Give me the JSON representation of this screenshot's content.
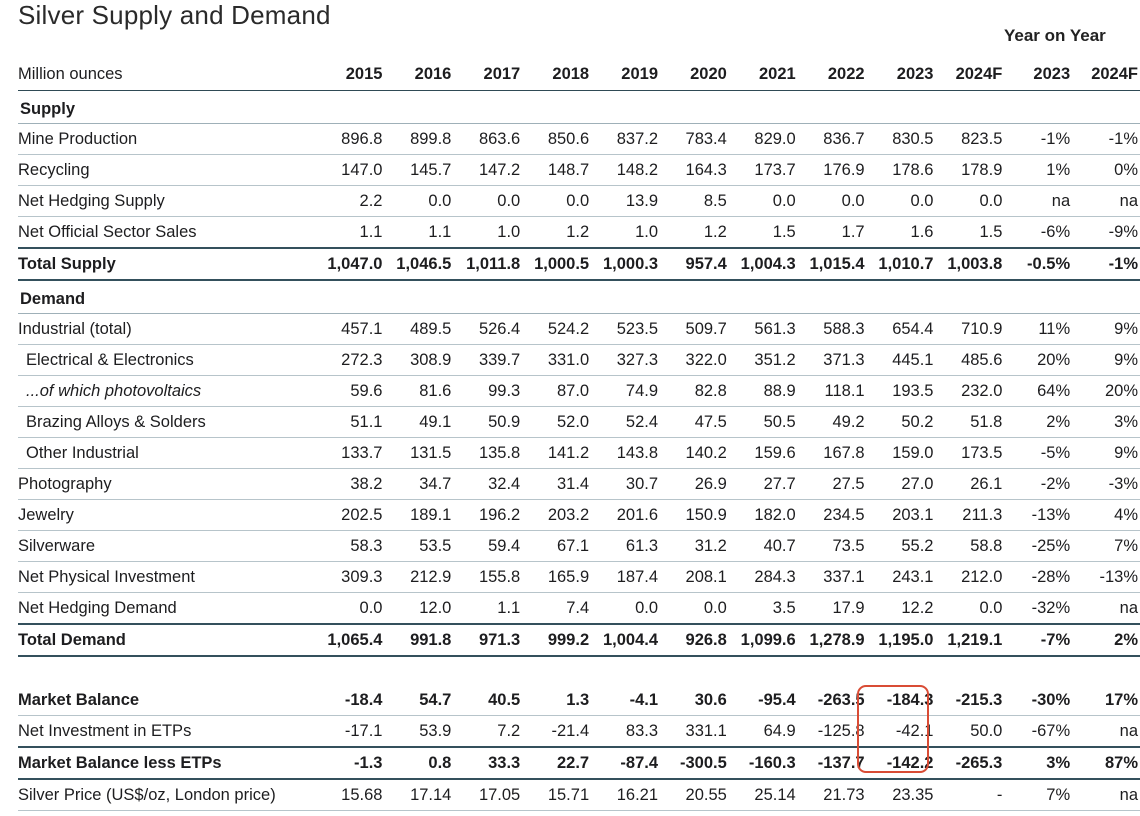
{
  "title": "Silver Supply and Demand",
  "yoy_label": "Year on Year",
  "header": {
    "unit": "Million ounces",
    "years": [
      "2015",
      "2016",
      "2017",
      "2018",
      "2019",
      "2020",
      "2021",
      "2022",
      "2023",
      "2024F"
    ],
    "yoy": [
      "2023",
      "2024F"
    ]
  },
  "supply": {
    "section_label": "Supply",
    "rows": [
      {
        "label": "Mine Production",
        "values": [
          "896.8",
          "899.8",
          "863.6",
          "850.6",
          "837.2",
          "783.4",
          "829.0",
          "836.7",
          "830.5",
          "823.5"
        ],
        "yoy": [
          "-1%",
          "-1%"
        ]
      },
      {
        "label": "Recycling",
        "values": [
          "147.0",
          "145.7",
          "147.2",
          "148.7",
          "148.2",
          "164.3",
          "173.7",
          "176.9",
          "178.6",
          "178.9"
        ],
        "yoy": [
          "1%",
          "0%"
        ]
      },
      {
        "label": "Net Hedging Supply",
        "values": [
          "2.2",
          "0.0",
          "0.0",
          "0.0",
          "13.9",
          "8.5",
          "0.0",
          "0.0",
          "0.0",
          "0.0"
        ],
        "yoy": [
          "na",
          "na"
        ]
      },
      {
        "label": "Net Official Sector Sales",
        "values": [
          "1.1",
          "1.1",
          "1.0",
          "1.2",
          "1.0",
          "1.2",
          "1.5",
          "1.7",
          "1.6",
          "1.5"
        ],
        "yoy": [
          "-6%",
          "-9%"
        ]
      }
    ],
    "total": {
      "label": "Total Supply",
      "values": [
        "1,047.0",
        "1,046.5",
        "1,011.8",
        "1,000.5",
        "1,000.3",
        "957.4",
        "1,004.3",
        "1,015.4",
        "1,010.7",
        "1,003.8"
      ],
      "yoy": [
        "-0.5%",
        "-1%"
      ]
    }
  },
  "demand": {
    "section_label": "Demand",
    "rows": [
      {
        "label": "Industrial (total)",
        "values": [
          "457.1",
          "489.5",
          "526.4",
          "524.2",
          "523.5",
          "509.7",
          "561.3",
          "588.3",
          "654.4",
          "710.9"
        ],
        "yoy": [
          "11%",
          "9%"
        ]
      },
      {
        "label": "Electrical & Electronics",
        "values": [
          "272.3",
          "308.9",
          "339.7",
          "331.0",
          "327.3",
          "322.0",
          "351.2",
          "371.3",
          "445.1",
          "485.6"
        ],
        "yoy": [
          "20%",
          "9%"
        ]
      },
      {
        "label": "...of which photovoltaics",
        "values": [
          "59.6",
          "81.6",
          "99.3",
          "87.0",
          "74.9",
          "82.8",
          "88.9",
          "118.1",
          "193.5",
          "232.0"
        ],
        "yoy": [
          "64%",
          "20%"
        ]
      },
      {
        "label": "Brazing Alloys & Solders",
        "values": [
          "51.1",
          "49.1",
          "50.9",
          "52.0",
          "52.4",
          "47.5",
          "50.5",
          "49.2",
          "50.2",
          "51.8"
        ],
        "yoy": [
          "2%",
          "3%"
        ]
      },
      {
        "label": "Other Industrial",
        "values": [
          "133.7",
          "131.5",
          "135.8",
          "141.2",
          "143.8",
          "140.2",
          "159.6",
          "167.8",
          "159.0",
          "173.5"
        ],
        "yoy": [
          "-5%",
          "9%"
        ]
      },
      {
        "label": "Photography",
        "values": [
          "38.2",
          "34.7",
          "32.4",
          "31.4",
          "30.7",
          "26.9",
          "27.7",
          "27.5",
          "27.0",
          "26.1"
        ],
        "yoy": [
          "-2%",
          "-3%"
        ]
      },
      {
        "label": "Jewelry",
        "values": [
          "202.5",
          "189.1",
          "196.2",
          "203.2",
          "201.6",
          "150.9",
          "182.0",
          "234.5",
          "203.1",
          "211.3"
        ],
        "yoy": [
          "-13%",
          "4%"
        ]
      },
      {
        "label": "Silverware",
        "values": [
          "58.3",
          "53.5",
          "59.4",
          "67.1",
          "61.3",
          "31.2",
          "40.7",
          "73.5",
          "55.2",
          "58.8"
        ],
        "yoy": [
          "-25%",
          "7%"
        ]
      },
      {
        "label": "Net Physical Investment",
        "values": [
          "309.3",
          "212.9",
          "155.8",
          "165.9",
          "187.4",
          "208.1",
          "284.3",
          "337.1",
          "243.1",
          "212.0"
        ],
        "yoy": [
          "-28%",
          "-13%"
        ]
      },
      {
        "label": "Net Hedging Demand",
        "values": [
          "0.0",
          "12.0",
          "1.1",
          "7.4",
          "0.0",
          "0.0",
          "3.5",
          "17.9",
          "12.2",
          "0.0"
        ],
        "yoy": [
          "-32%",
          "na"
        ]
      }
    ],
    "total": {
      "label": "Total Demand",
      "values": [
        "1,065.4",
        "991.8",
        "971.3",
        "999.2",
        "1,004.4",
        "926.8",
        "1,099.6",
        "1,278.9",
        "1,195.0",
        "1,219.1"
      ],
      "yoy": [
        "-7%",
        "2%"
      ]
    }
  },
  "balance": {
    "rows": [
      {
        "label": "Market Balance",
        "values": [
          "-18.4",
          "54.7",
          "40.5",
          "1.3",
          "-4.1",
          "30.6",
          "-95.4",
          "-263.5",
          "-184.3",
          "-215.3"
        ],
        "yoy": [
          "-30%",
          "17%"
        ]
      },
      {
        "label": "Net Investment in ETPs",
        "values": [
          "-17.1",
          "53.9",
          "7.2",
          "-21.4",
          "83.3",
          "331.1",
          "64.9",
          "-125.8",
          "-42.1",
          "50.0"
        ],
        "yoy": [
          "-67%",
          "na"
        ]
      },
      {
        "label": "Market Balance less ETPs",
        "values": [
          "-1.3",
          "0.8",
          "33.3",
          "22.7",
          "-87.4",
          "-300.5",
          "-160.3",
          "-137.7",
          "-142.2",
          "-265.3"
        ],
        "yoy": [
          "3%",
          "87%"
        ]
      },
      {
        "label": "Silver Price (US$/oz, London price)",
        "values": [
          "15.68",
          "17.14",
          "17.05",
          "15.71",
          "16.21",
          "20.55",
          "25.14",
          "21.73",
          "23.35",
          "-"
        ],
        "yoy": [
          "7%",
          "na"
        ]
      }
    ]
  },
  "highlight_color": "#d94c35"
}
